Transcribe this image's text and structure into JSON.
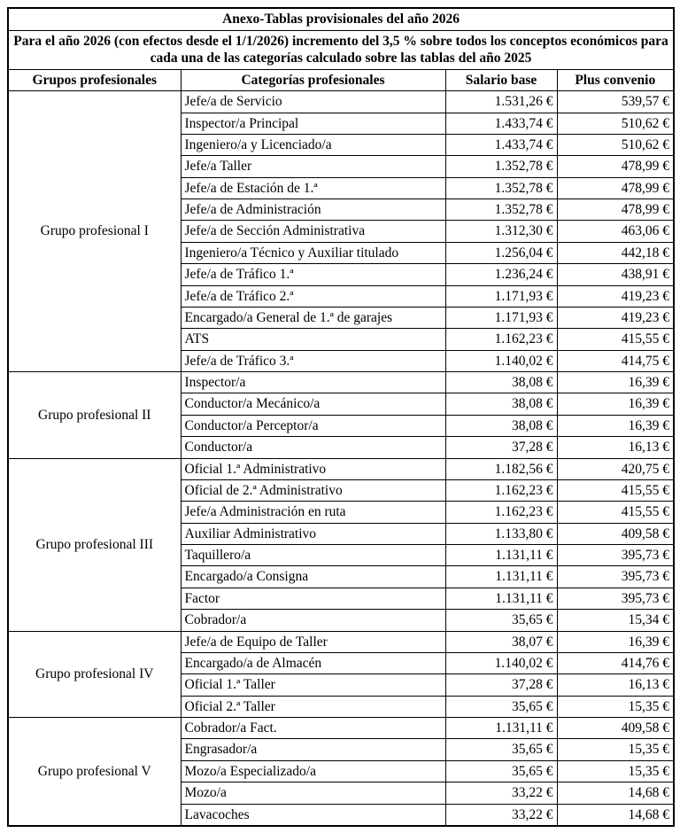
{
  "document": {
    "title": "Anexo-Tablas provisionales del año 2026",
    "subtitle": "Para el año 2026 (con efectos desde el 1/1/2026) incremento del 3,5 % sobre todos los conceptos económicos para cada una de las categorías calculado sobre las tablas del año 2025"
  },
  "table": {
    "columns": [
      "Grupos profesionales",
      "Categorías profesionales",
      "Salario base",
      "Plus convenio"
    ],
    "groups": [
      {
        "name": "Grupo profesional I",
        "rows": [
          {
            "category": "Jefe/a de Servicio",
            "salario_base": "1.531,26 €",
            "plus_convenio": "539,57 €"
          },
          {
            "category": "Inspector/a Principal",
            "salario_base": "1.433,74 €",
            "plus_convenio": "510,62 €"
          },
          {
            "category": "Ingeniero/a y Licenciado/a",
            "salario_base": "1.433,74 €",
            "plus_convenio": "510,62 €"
          },
          {
            "category": "Jefe/a Taller",
            "salario_base": "1.352,78 €",
            "plus_convenio": "478,99 €"
          },
          {
            "category": "Jefe/a de Estación de 1.ª",
            "salario_base": "1.352,78 €",
            "plus_convenio": "478,99 €"
          },
          {
            "category": "Jefe/a de Administración",
            "salario_base": "1.352,78 €",
            "plus_convenio": "478,99 €"
          },
          {
            "category": "Jefe/a de Sección Administrativa",
            "salario_base": "1.312,30 €",
            "plus_convenio": "463,06 €"
          },
          {
            "category": "Ingeniero/a Técnico y Auxiliar titulado",
            "salario_base": "1.256,04 €",
            "plus_convenio": "442,18 €"
          },
          {
            "category": "Jefe/a de Tráfico 1.ª",
            "salario_base": "1.236,24 €",
            "plus_convenio": "438,91 €"
          },
          {
            "category": "Jefe/a de Tráfico 2.ª",
            "salario_base": "1.171,93 €",
            "plus_convenio": "419,23 €"
          },
          {
            "category": "Encargado/a General de 1.ª de garajes",
            "salario_base": "1.171,93 €",
            "plus_convenio": "419,23 €"
          },
          {
            "category": "ATS",
            "salario_base": "1.162,23 €",
            "plus_convenio": "415,55 €"
          },
          {
            "category": "Jefe/a de Tráfico 3.ª",
            "salario_base": "1.140,02 €",
            "plus_convenio": "414,75 €"
          }
        ]
      },
      {
        "name": "Grupo profesional II",
        "rows": [
          {
            "category": "Inspector/a",
            "salario_base": "38,08 €",
            "plus_convenio": "16,39 €"
          },
          {
            "category": "Conductor/a Mecánico/a",
            "salario_base": "38,08 €",
            "plus_convenio": "16,39 €"
          },
          {
            "category": "Conductor/a Perceptor/a",
            "salario_base": "38,08 €",
            "plus_convenio": "16,39 €"
          },
          {
            "category": "Conductor/a",
            "salario_base": "37,28 €",
            "plus_convenio": "16,13 €"
          }
        ]
      },
      {
        "name": "Grupo profesional III",
        "rows": [
          {
            "category": "Oficial 1.ª Administrativo",
            "salario_base": "1.182,56 €",
            "plus_convenio": "420,75 €"
          },
          {
            "category": "Oficial de 2.ª Administrativo",
            "salario_base": "1.162,23 €",
            "plus_convenio": "415,55 €"
          },
          {
            "category": "Jefe/a Administración en ruta",
            "salario_base": "1.162,23 €",
            "plus_convenio": "415,55 €"
          },
          {
            "category": "Auxiliar Administrativo",
            "salario_base": "1.133,80 €",
            "plus_convenio": "409,58 €"
          },
          {
            "category": "Taquillero/a",
            "salario_base": "1.131,11 €",
            "plus_convenio": "395,73 €"
          },
          {
            "category": "Encargado/a Consigna",
            "salario_base": "1.131,11 €",
            "plus_convenio": "395,73 €"
          },
          {
            "category": "Factor",
            "salario_base": "1.131,11 €",
            "plus_convenio": "395,73 €"
          },
          {
            "category": "Cobrador/a",
            "salario_base": "35,65 €",
            "plus_convenio": "15,34 €"
          }
        ]
      },
      {
        "name": "Grupo profesional IV",
        "rows": [
          {
            "category": "Jefe/a de Equipo de Taller",
            "salario_base": "38,07 €",
            "plus_convenio": "16,39 €"
          },
          {
            "category": "Encargado/a de Almacén",
            "salario_base": "1.140,02 €",
            "plus_convenio": "414,76 €"
          },
          {
            "category": "Oficial 1.ª Taller",
            "salario_base": "37,28 €",
            "plus_convenio": "16,13 €"
          },
          {
            "category": "Oficial 2.ª Taller",
            "salario_base": "35,65 €",
            "plus_convenio": "15,35 €"
          }
        ]
      },
      {
        "name": "Grupo profesional V",
        "rows": [
          {
            "category": "Cobrador/a Fact.",
            "salario_base": "1.131,11 €",
            "plus_convenio": "409,58 €"
          },
          {
            "category": "Engrasador/a",
            "salario_base": "35,65 €",
            "plus_convenio": "15,35 €"
          },
          {
            "category": "Mozo/a Especializado/a",
            "salario_base": "35,65 €",
            "plus_convenio": "15,35 €"
          },
          {
            "category": "Mozo/a",
            "salario_base": "33,22 €",
            "plus_convenio": "14,68 €"
          },
          {
            "category": "Lavacoches",
            "salario_base": "33,22 €",
            "plus_convenio": "14,68 €"
          }
        ]
      }
    ]
  }
}
